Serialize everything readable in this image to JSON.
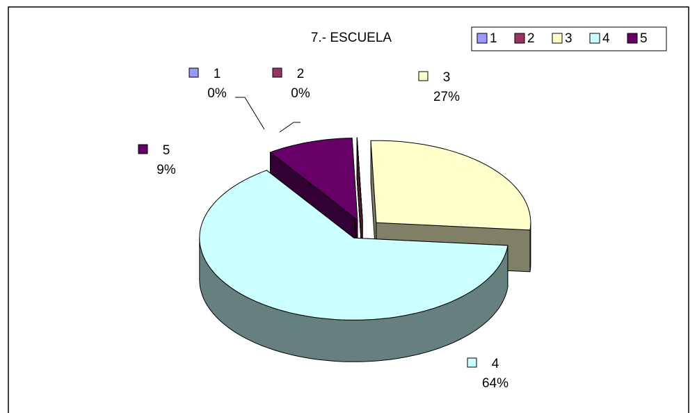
{
  "chart_data": {
    "type": "pie",
    "title": "7.- ESCUELA",
    "categories": [
      "1",
      "2",
      "3",
      "4",
      "5"
    ],
    "values": [
      0,
      0,
      27,
      64,
      9
    ],
    "value_labels": [
      "0%",
      "0%",
      "27%",
      "64%",
      "9%"
    ],
    "colors": [
      "#9999ff",
      "#993366",
      "#ffffcc",
      "#ccffff",
      "#660066"
    ],
    "legend": "top-right"
  }
}
